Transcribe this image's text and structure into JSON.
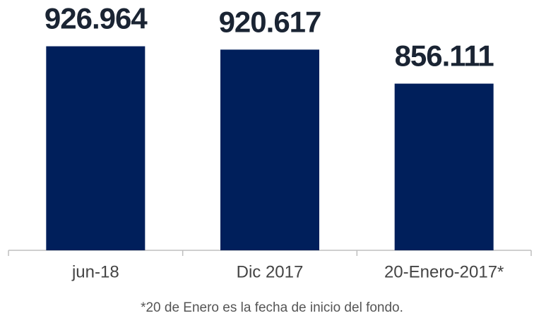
{
  "chart_data": {
    "type": "bar",
    "categories": [
      "jun-18",
      "Dic 2017",
      "20-Enero-2017*"
    ],
    "values": [
      926964,
      920617,
      856111
    ],
    "value_labels": [
      "926.964",
      "920.617",
      "856.111"
    ],
    "color": "#001f5b",
    "ylim": [
      540000,
      1000000
    ],
    "note": "*20 de Enero es la fecha de inicio del fondo."
  }
}
